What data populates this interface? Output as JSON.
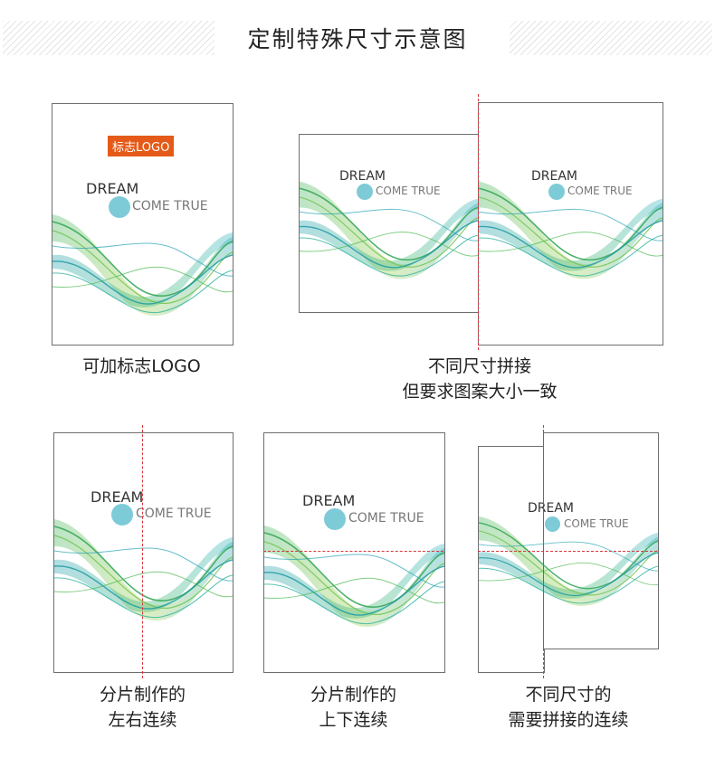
{
  "header": {
    "title": "定制特殊尺寸示意图"
  },
  "artwork": {
    "dream": "DREAM",
    "come_true": "COME TRUE",
    "logo_badge": "标志LOGO"
  },
  "captions": {
    "logo": "可加标志LOGO",
    "diff_size_line1": "不同尺寸拼接",
    "diff_size_line2": "但要求图案大小一致",
    "lr_line1": "分片制作的",
    "lr_line2": "左右连续",
    "ud_line1": "分片制作的",
    "ud_line2": "上下连续",
    "mixed_line1": "不同尺寸的",
    "mixed_line2": "需要拼接的连续"
  },
  "colors": {
    "accent_badge": "#e55a18",
    "dot": "#7ecbd8",
    "guide_line": "#d9363e",
    "wave_green": "#5bbf4a",
    "wave_teal": "#1fa7a8"
  }
}
